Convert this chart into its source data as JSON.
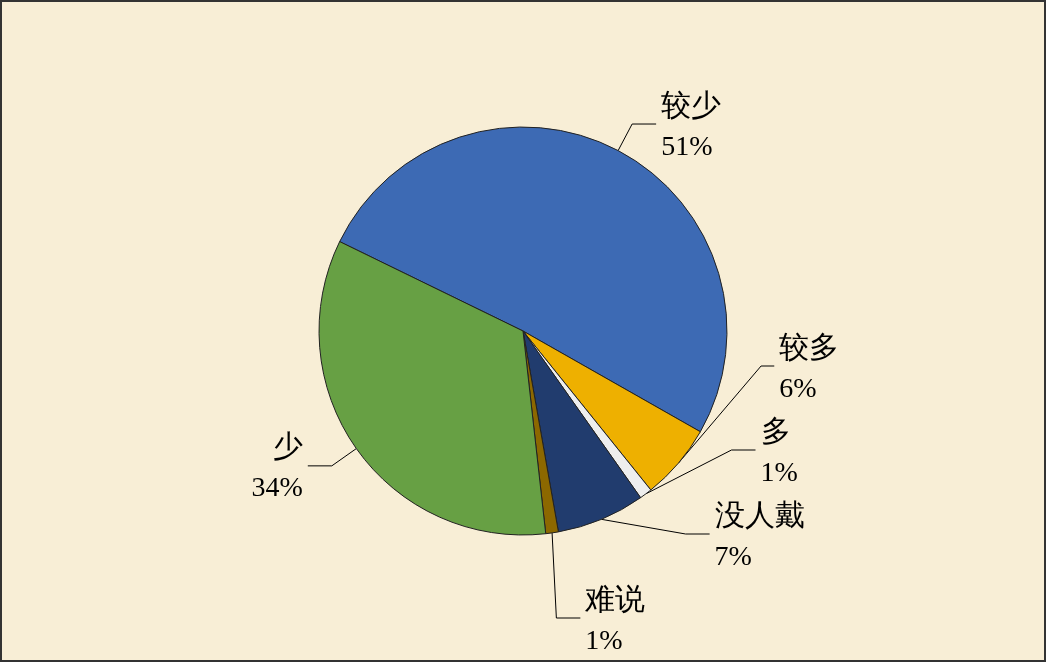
{
  "chart_data": {
    "type": "pie",
    "categories": [
      "较少",
      "较多",
      "多",
      "没人戴",
      "难说",
      "少"
    ],
    "values": [
      51,
      6,
      1,
      7,
      1,
      34
    ],
    "colors": [
      "#3d6ab4",
      "#eeb000",
      "#eeeeee",
      "#213c6e",
      "#8c6800",
      "#67a044"
    ],
    "value_labels": [
      "51%",
      "6%",
      "1%",
      "7%",
      "1%",
      "34%"
    ]
  }
}
